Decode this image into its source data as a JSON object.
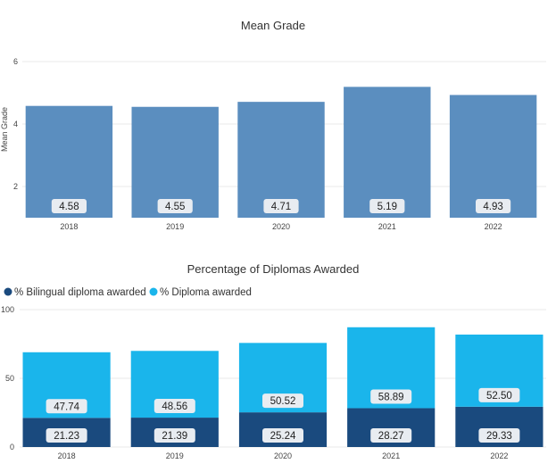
{
  "chart_data": [
    {
      "type": "bar",
      "title": "Mean Grade",
      "ylabel": "Mean Grade",
      "xlabel": "",
      "categories": [
        "2018",
        "2019",
        "2020",
        "2021",
        "2022"
      ],
      "values": [
        4.58,
        4.55,
        4.71,
        5.19,
        4.93
      ],
      "value_labels": [
        "4.58",
        "4.55",
        "4.71",
        "5.19",
        "4.93"
      ],
      "y_ticks": [
        "2",
        "4",
        "6"
      ],
      "ylim": [
        1,
        6.2
      ],
      "grid": true,
      "color": "#5b8ebf"
    },
    {
      "type": "bar",
      "stacked": true,
      "title": "Percentage of Diplomas Awarded",
      "xlabel": "",
      "ylabel": "",
      "categories": [
        "2018",
        "2019",
        "2020",
        "2021",
        "2022"
      ],
      "legend_position": "top-left",
      "y_ticks": [
        "0",
        "50",
        "100"
      ],
      "ylim": [
        0,
        100
      ],
      "grid": true,
      "series": [
        {
          "name": "% Bilingual diploma awarded",
          "color": "#1a4a7e",
          "values": [
            21.23,
            21.39,
            25.24,
            28.27,
            29.33
          ],
          "value_labels": [
            "21.23",
            "21.39",
            "25.24",
            "28.27",
            "29.33"
          ]
        },
        {
          "name": "% Diploma awarded",
          "color": "#1ab5eb",
          "values": [
            47.74,
            48.56,
            50.52,
            58.89,
            52.5
          ],
          "value_labels": [
            "47.74",
            "48.56",
            "50.52",
            "58.89",
            "52.50"
          ]
        }
      ]
    }
  ]
}
